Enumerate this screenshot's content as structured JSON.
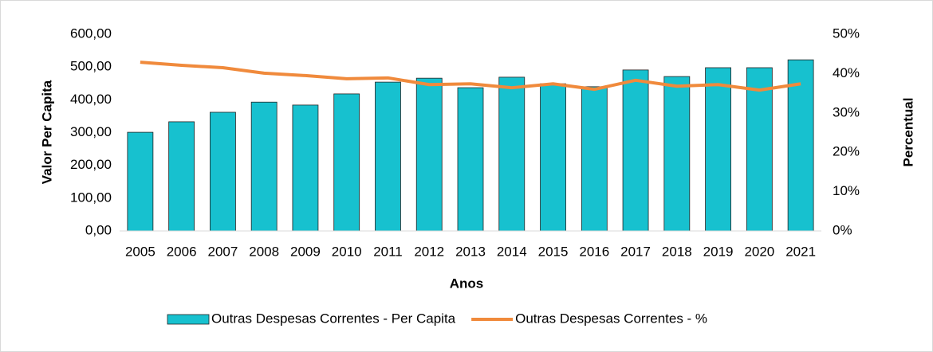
{
  "chart_data": {
    "type": "bar_line",
    "x_label": "Anos",
    "y_label": "Valor Per Capita",
    "y2_label": "Percentual",
    "categories": [
      "2005",
      "2006",
      "2007",
      "2008",
      "2009",
      "2010",
      "2011",
      "2012",
      "2013",
      "2014",
      "2015",
      "2016",
      "2017",
      "2018",
      "2019",
      "2020",
      "2021"
    ],
    "series": [
      {
        "name": "Outras Despesas Correntes - Per Capita",
        "type": "bar",
        "color": "#17c1cf",
        "values": [
          301,
          333,
          362,
          393,
          384,
          418,
          454,
          466,
          437,
          469,
          449,
          440,
          491,
          471,
          498,
          498,
          522
        ]
      },
      {
        "name": "Outras Despesas Correntes - %",
        "type": "line",
        "axis": "y2",
        "color": "#f08a3c",
        "values": [
          42.9,
          42.1,
          41.5,
          40.1,
          39.5,
          38.7,
          38.9,
          37.2,
          37.4,
          36.4,
          37.4,
          36.0,
          38.3,
          36.8,
          37.2,
          35.8,
          37.4
        ]
      }
    ],
    "ylim": [
      0,
      600
    ],
    "yticks": [
      {
        "value": 0,
        "label": "0,00"
      },
      {
        "value": 100,
        "label": "100,00"
      },
      {
        "value": 200,
        "label": "200,00"
      },
      {
        "value": 300,
        "label": "300,00"
      },
      {
        "value": 400,
        "label": "400,00"
      },
      {
        "value": 500,
        "label": "500,00"
      },
      {
        "value": 600,
        "label": "600,00"
      }
    ],
    "y2lim": [
      0,
      50
    ],
    "y2ticks": [
      {
        "value": 0,
        "label": "0%"
      },
      {
        "value": 10,
        "label": "10%"
      },
      {
        "value": 20,
        "label": "20%"
      },
      {
        "value": 30,
        "label": "30%"
      },
      {
        "value": 40,
        "label": "40%"
      },
      {
        "value": 50,
        "label": "50%"
      }
    ],
    "legend": "bottom"
  }
}
